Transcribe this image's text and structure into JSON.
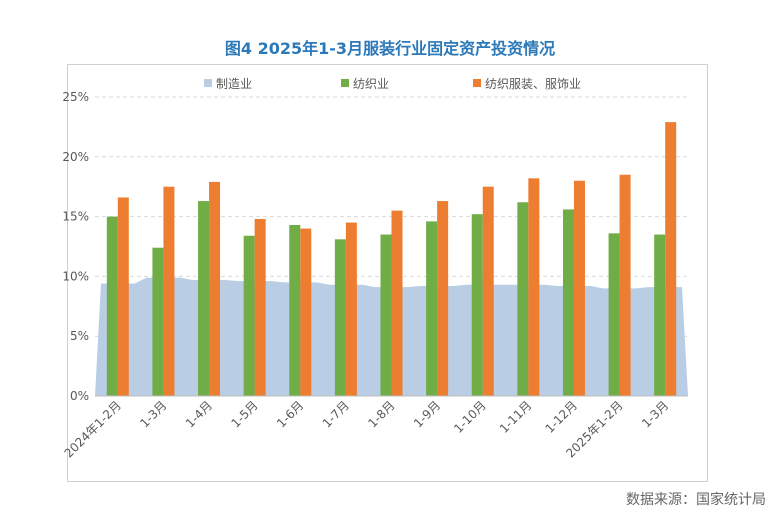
{
  "source": "数据来源：国家统计局",
  "colors": {
    "manufacturing": "#b9cde5",
    "textile": "#70ad47",
    "apparel": "#ed7d31",
    "title": "#2b79b8",
    "grid": "#d9d9d9",
    "axis_text": "#595959"
  },
  "chart_data": {
    "type": "bar",
    "title": "图4 2025年1-3月服装行业固定资产投资情况",
    "categories": [
      "2024年1-2月",
      "1-3月",
      "1-4月",
      "1-5月",
      "1-6月",
      "1-7月",
      "1-8月",
      "1-9月",
      "1-10月",
      "1-11月",
      "1-12月",
      "2025年1-2月",
      "1-3月"
    ],
    "series": [
      {
        "name": "制造业",
        "render": "area",
        "values": [
          9.4,
          9.9,
          9.7,
          9.6,
          9.5,
          9.3,
          9.1,
          9.2,
          9.3,
          9.3,
          9.2,
          9.0,
          9.1
        ]
      },
      {
        "name": "纺织业",
        "render": "bar",
        "values": [
          15.0,
          12.4,
          16.3,
          13.4,
          14.3,
          13.1,
          13.5,
          14.6,
          15.2,
          16.2,
          15.6,
          13.6,
          13.5
        ]
      },
      {
        "name": "纺织服装、服饰业",
        "render": "bar",
        "values": [
          16.6,
          17.5,
          17.9,
          14.8,
          14.0,
          14.5,
          15.5,
          16.3,
          17.5,
          18.2,
          18.0,
          18.5,
          22.9
        ]
      }
    ],
    "y_ticks": [
      "0%",
      "5%",
      "10%",
      "15%",
      "20%",
      "25%"
    ],
    "ylim": [
      0,
      25
    ],
    "grid": true,
    "legend_position": "top"
  }
}
